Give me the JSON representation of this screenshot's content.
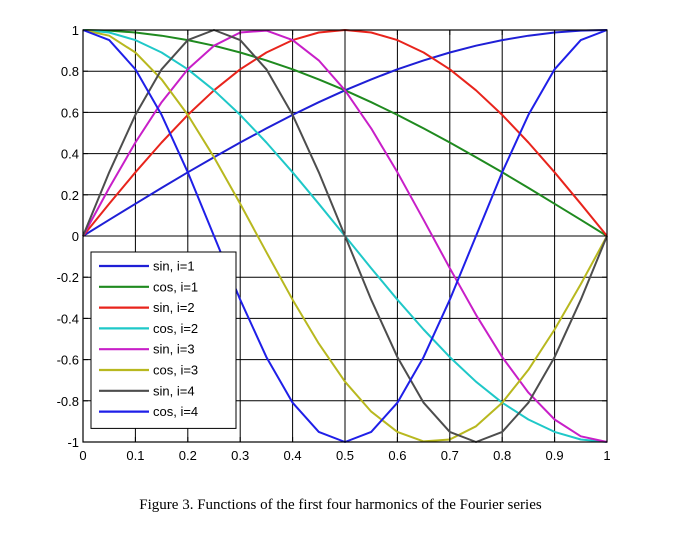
{
  "caption": "Figure 3. Functions of the first four harmonics of the Fourier series",
  "chart_data": {
    "type": "line",
    "xlim": [
      0,
      1
    ],
    "ylim": [
      -1,
      1
    ],
    "xticks": [
      0,
      0.1,
      0.2,
      0.3,
      0.4,
      0.5,
      0.6,
      0.7,
      0.8,
      0.9,
      1
    ],
    "xtick_labels": [
      "0",
      "0.1",
      "0.2",
      "0.3",
      "0.4",
      "0.5",
      "0.6",
      "0.7",
      "0.8",
      "0.9",
      "1"
    ],
    "yticks": [
      1,
      0.8,
      0.6,
      0.4,
      0.2,
      0,
      -0.2,
      -0.4,
      -0.6,
      -0.8,
      -1
    ],
    "ytick_labels": [
      "1",
      "0.8",
      "0.6",
      "0.4",
      "0.2",
      "0",
      "-0.2",
      "-0.4",
      "-0.6",
      "-0.8",
      "-1"
    ],
    "grid": true,
    "legend_position": "bottom-left",
    "x": [
      0,
      0.05,
      0.1,
      0.15,
      0.2,
      0.25,
      0.3,
      0.35,
      0.4,
      0.45,
      0.5,
      0.55,
      0.6,
      0.65,
      0.7,
      0.75,
      0.8,
      0.85,
      0.9,
      0.95,
      1
    ],
    "series": [
      {
        "name": "sin, i=1",
        "color": "#1f1fd6",
        "values": [
          0,
          0.0785,
          0.1564,
          0.2334,
          0.309,
          0.3827,
          0.454,
          0.5225,
          0.5878,
          0.6494,
          0.7071,
          0.7604,
          0.809,
          0.8526,
          0.891,
          0.9239,
          0.9511,
          0.9724,
          0.9877,
          0.9969,
          1
        ]
      },
      {
        "name": "cos, i=1",
        "color": "#1f8a1f",
        "values": [
          1,
          0.9969,
          0.9877,
          0.9724,
          0.9511,
          0.9239,
          0.891,
          0.8526,
          0.809,
          0.7604,
          0.7071,
          0.6494,
          0.5878,
          0.5225,
          0.454,
          0.3827,
          0.309,
          0.2334,
          0.1564,
          0.0785,
          0
        ]
      },
      {
        "name": "sin, i=2",
        "color": "#e8241c",
        "values": [
          0,
          0.1564,
          0.309,
          0.454,
          0.5878,
          0.7071,
          0.809,
          0.891,
          0.9511,
          0.9877,
          1,
          0.9877,
          0.9511,
          0.891,
          0.809,
          0.7071,
          0.5878,
          0.454,
          0.309,
          0.1564,
          0
        ]
      },
      {
        "name": "cos, i=2",
        "color": "#1fc8c8",
        "values": [
          1,
          0.9877,
          0.9511,
          0.891,
          0.809,
          0.7071,
          0.5878,
          0.454,
          0.309,
          0.1564,
          0,
          -0.1564,
          -0.309,
          -0.454,
          -0.5878,
          -0.7071,
          -0.809,
          -0.891,
          -0.9511,
          -0.9877,
          -1
        ]
      },
      {
        "name": "sin, i=3",
        "color": "#c81fc8",
        "values": [
          0,
          0.2334,
          0.454,
          0.6494,
          0.809,
          0.9239,
          0.9877,
          0.9969,
          0.9511,
          0.8526,
          0.7071,
          0.5225,
          0.309,
          0.0785,
          -0.1564,
          -0.3827,
          -0.5878,
          -0.7604,
          -0.891,
          -0.9724,
          -1
        ]
      },
      {
        "name": "cos, i=3",
        "color": "#b8b81f",
        "values": [
          1,
          0.9724,
          0.891,
          0.7604,
          0.5878,
          0.3827,
          0.1564,
          -0.0785,
          -0.309,
          -0.5225,
          -0.7071,
          -0.8526,
          -0.9511,
          -0.9969,
          -0.9877,
          -0.9239,
          -0.809,
          -0.6494,
          -0.454,
          -0.2334,
          0
        ]
      },
      {
        "name": "sin, i=4",
        "color": "#4d4d4d",
        "values": [
          0,
          0.309,
          0.5878,
          0.809,
          0.9511,
          1,
          0.9511,
          0.809,
          0.5878,
          0.309,
          0,
          -0.309,
          -0.5878,
          -0.809,
          -0.9511,
          -1,
          -0.9511,
          -0.809,
          -0.5878,
          -0.309,
          0
        ]
      },
      {
        "name": "cos, i=4",
        "color": "#1f1fe8",
        "values": [
          1,
          0.9511,
          0.809,
          0.5878,
          0.309,
          0,
          -0.309,
          -0.5878,
          -0.809,
          -0.9511,
          -1,
          -0.9511,
          -0.809,
          -0.5878,
          -0.309,
          0,
          0.309,
          0.5878,
          0.809,
          0.9511,
          1
        ]
      }
    ]
  }
}
